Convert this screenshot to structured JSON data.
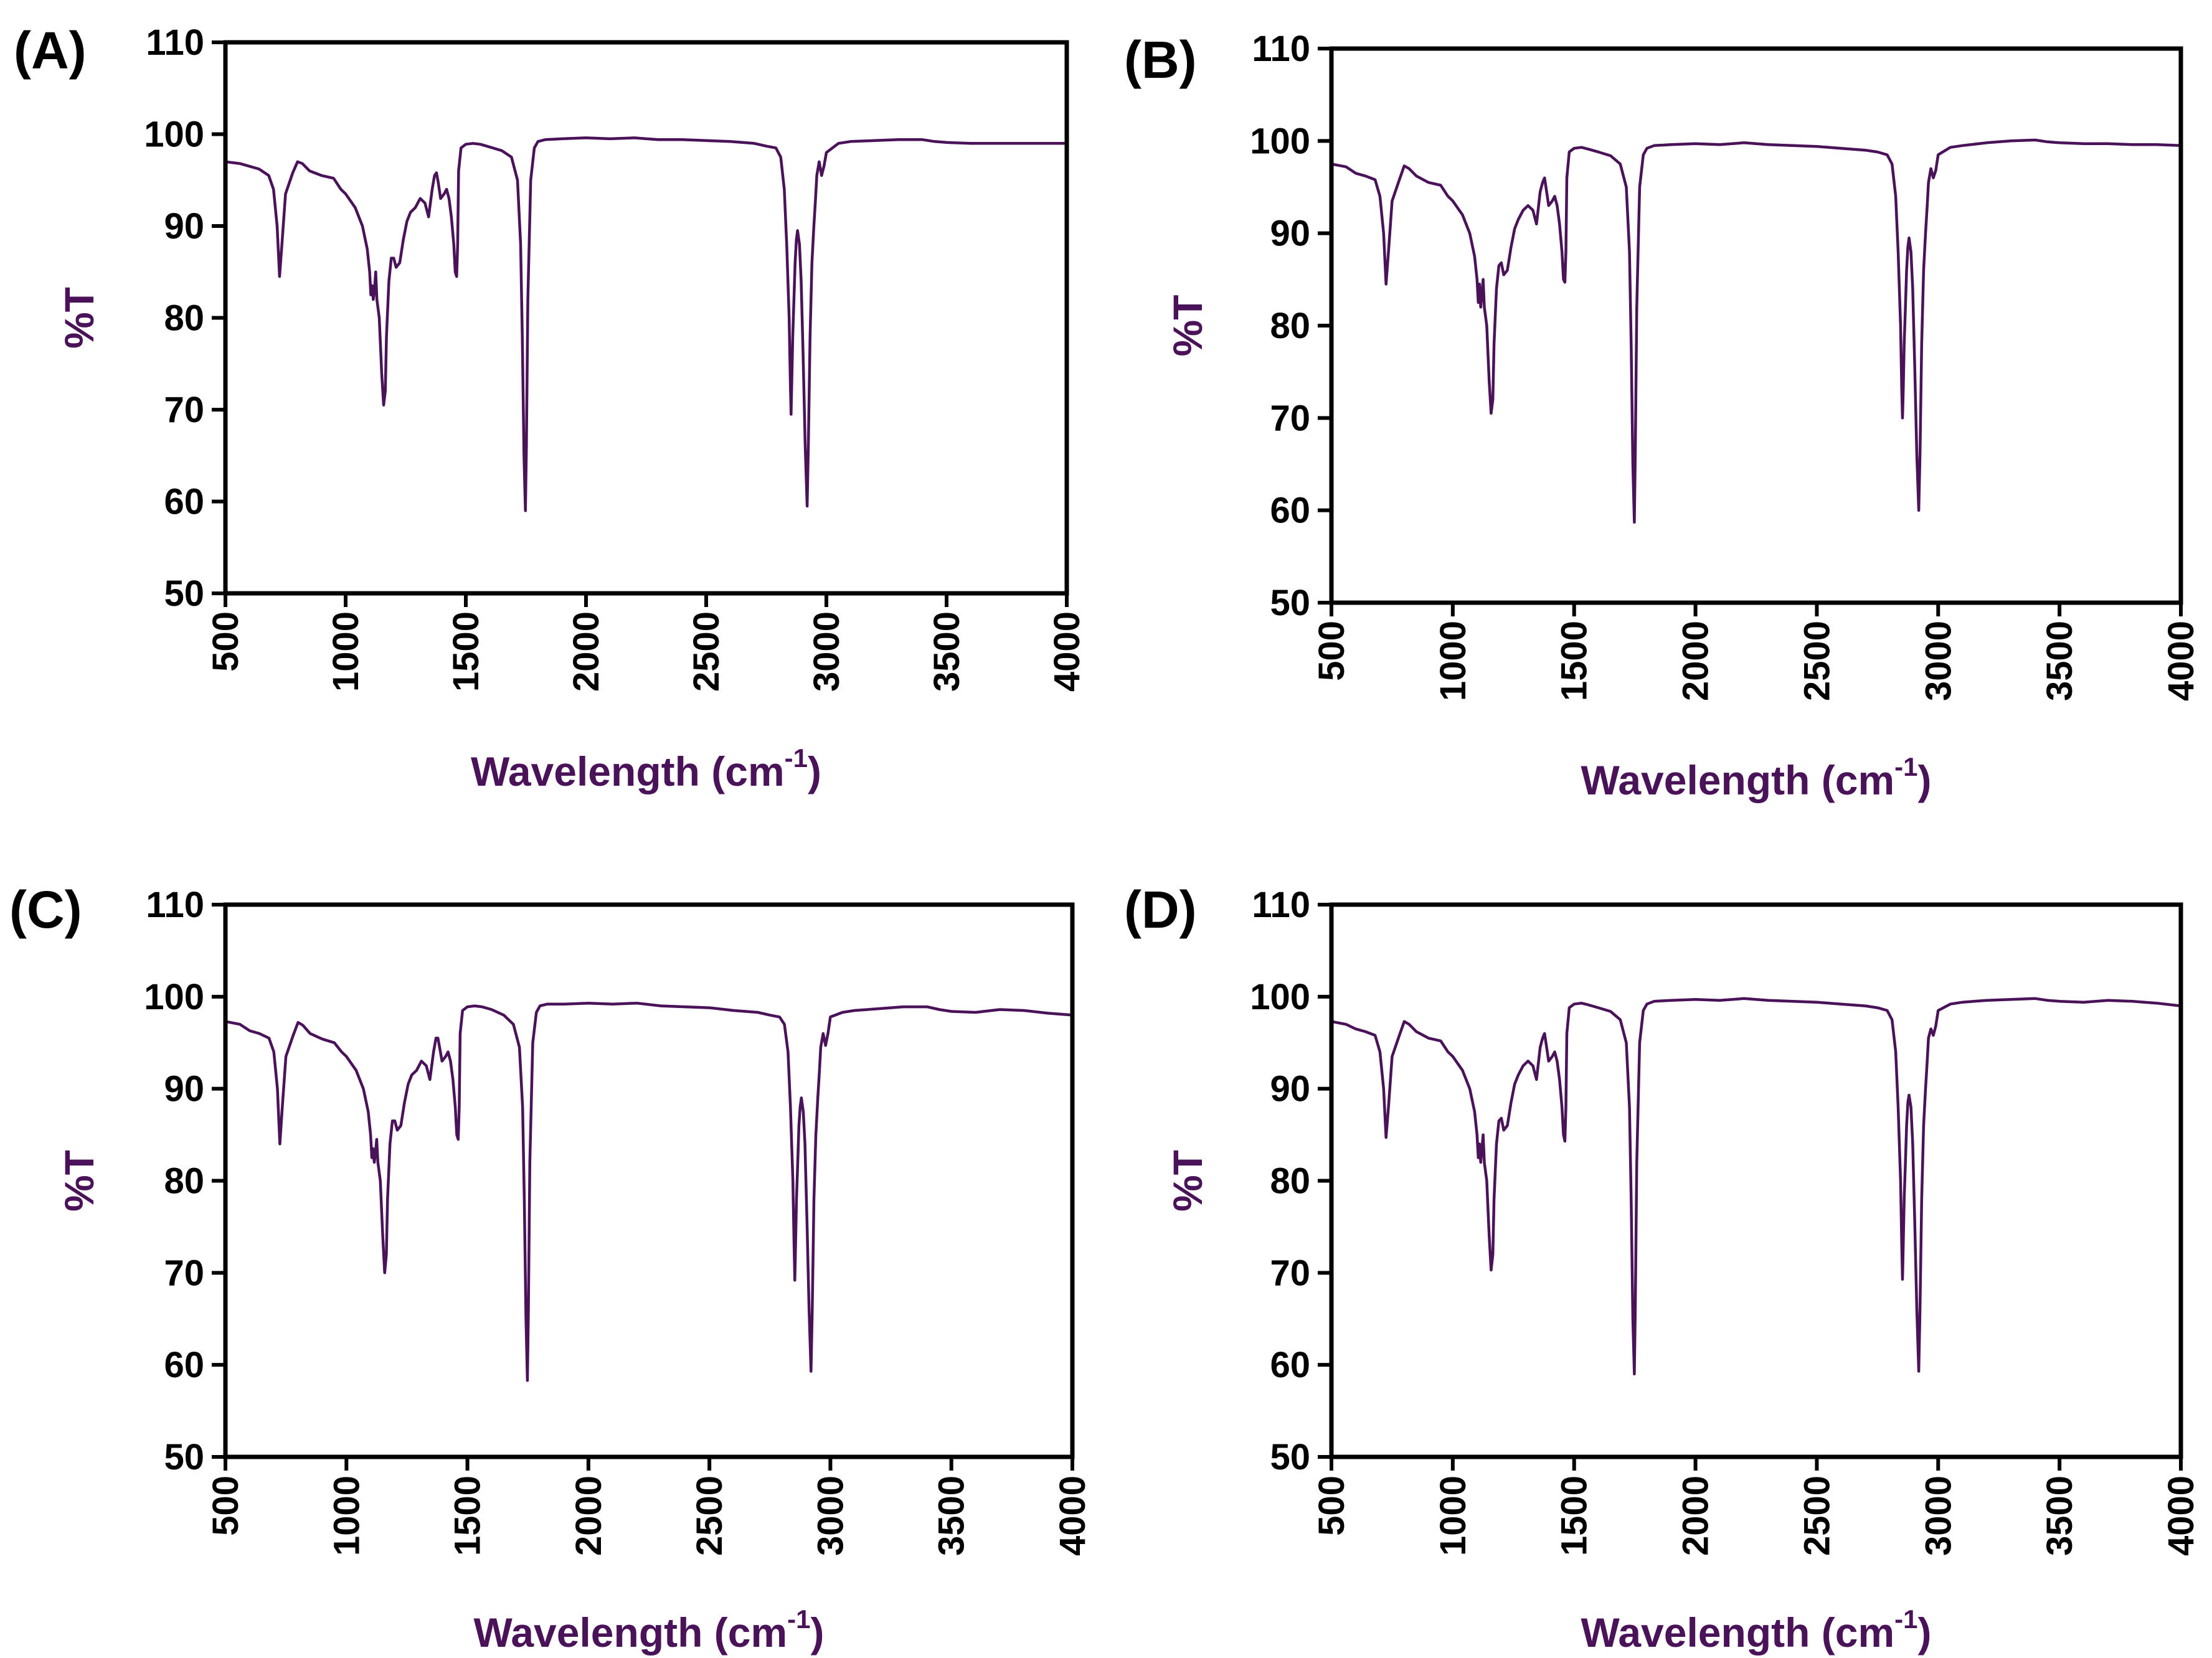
{
  "chart_data": [
    {
      "type": "line",
      "panel_label": "(A)",
      "xlabel": "Wavelength (cm",
      "xlabel_superscript": "-1",
      "xlabel_close": ")",
      "ylabel": "%T",
      "xlim": [
        500,
        4000
      ],
      "ylim": [
        50,
        110
      ],
      "xticks": [
        "500",
        "1000",
        "1500",
        "2000",
        "2500",
        "3000",
        "3500",
        "4000"
      ],
      "yticks": [
        "50",
        "60",
        "70",
        "80",
        "90",
        "100",
        "110"
      ],
      "color": "#4a1259",
      "tail_end": 99.0,
      "x": [
        500,
        560,
        600,
        640,
        680,
        700,
        715,
        725,
        735,
        750,
        780,
        800,
        820,
        850,
        900,
        950,
        980,
        1000,
        1040,
        1070,
        1090,
        1100,
        1105,
        1110,
        1115,
        1120,
        1125,
        1130,
        1140,
        1150,
        1158,
        1165,
        1170,
        1180,
        1190,
        1200,
        1210,
        1225,
        1240,
        1255,
        1270,
        1290,
        1310,
        1330,
        1345,
        1360,
        1370,
        1378,
        1385,
        1395,
        1410,
        1420,
        1430,
        1440,
        1450,
        1456,
        1462,
        1466,
        1470,
        1480,
        1500,
        1530,
        1560,
        1600,
        1650,
        1690,
        1715,
        1728,
        1735,
        1742,
        1748,
        1752,
        1758,
        1770,
        1785,
        1800,
        1830,
        1900,
        2000,
        2100,
        2200,
        2300,
        2400,
        2500,
        2600,
        2700,
        2750,
        2790,
        2810,
        2825,
        2835,
        2845,
        2850,
        2853,
        2856,
        2860,
        2865,
        2870,
        2875,
        2880,
        2888,
        2895,
        2903,
        2912,
        2920,
        2925,
        2932,
        2940,
        2948,
        2955,
        2960,
        2970,
        2980,
        2990,
        3000,
        3050,
        3100,
        3200,
        3300,
        3400,
        3450,
        3500,
        3600,
        3700,
        3800,
        3900,
        4000
      ],
      "values": [
        97,
        96.8,
        96.5,
        96.2,
        95.5,
        94.0,
        90.0,
        84.5,
        88,
        93.5,
        95.8,
        97.0,
        96.8,
        96.0,
        95.5,
        95.2,
        94.0,
        93.5,
        92.0,
        90.0,
        87.5,
        85.0,
        82.5,
        83.5,
        82.0,
        83.0,
        85.0,
        82.0,
        80.0,
        74.0,
        70.5,
        72.0,
        78.0,
        84.0,
        86.5,
        86.5,
        85.5,
        86.0,
        88.5,
        90.5,
        91.5,
        92.0,
        93.0,
        92.5,
        91.0,
        94.0,
        95.5,
        95.8,
        94.8,
        93.0,
        93.5,
        94.0,
        93.0,
        91.0,
        88.0,
        85.0,
        84.5,
        88.0,
        96.0,
        98.5,
        98.9,
        99.0,
        98.9,
        98.6,
        98.2,
        97.5,
        95.0,
        88.0,
        78.0,
        65.0,
        59.0,
        66.0,
        82.0,
        95.0,
        98.5,
        99.2,
        99.4,
        99.5,
        99.6,
        99.5,
        99.6,
        99.4,
        99.4,
        99.3,
        99.2,
        99.0,
        98.7,
        98.5,
        97.5,
        94.0,
        88.0,
        80.0,
        73.0,
        69.5,
        73.0,
        78.0,
        82.0,
        86.0,
        88.5,
        89.5,
        88.0,
        84.0,
        76.0,
        66.0,
        59.5,
        66.0,
        78.0,
        86.0,
        90.0,
        93.0,
        95.5,
        97.0,
        95.5,
        96.5,
        98.0,
        99.0,
        99.2,
        99.3,
        99.4,
        99.4,
        99.2,
        99.1,
        99.0,
        99.0,
        99.0,
        99.0,
        99.0
      ]
    },
    {
      "type": "line",
      "panel_label": "(B)",
      "xlabel": "Wavelength (cm",
      "xlabel_superscript": "-1",
      "xlabel_close": ")",
      "ylabel": "%T",
      "xlim": [
        500,
        4000
      ],
      "ylim": [
        50,
        110
      ],
      "xticks": [
        "500",
        "1000",
        "1500",
        "2000",
        "2500",
        "3000",
        "3500",
        "4000"
      ],
      "yticks": [
        "50",
        "60",
        "70",
        "80",
        "90",
        "100",
        "110"
      ],
      "color": "#4a1259",
      "tail_end": 99.5,
      "x": [
        500,
        560,
        600,
        640,
        680,
        700,
        715,
        725,
        735,
        750,
        780,
        800,
        820,
        850,
        900,
        950,
        980,
        1000,
        1040,
        1070,
        1090,
        1100,
        1105,
        1110,
        1115,
        1120,
        1125,
        1130,
        1140,
        1150,
        1158,
        1165,
        1170,
        1180,
        1190,
        1200,
        1210,
        1225,
        1240,
        1255,
        1270,
        1290,
        1310,
        1330,
        1345,
        1360,
        1370,
        1378,
        1385,
        1395,
        1410,
        1420,
        1430,
        1440,
        1450,
        1456,
        1462,
        1466,
        1470,
        1480,
        1500,
        1530,
        1560,
        1600,
        1650,
        1690,
        1715,
        1728,
        1735,
        1742,
        1748,
        1752,
        1758,
        1770,
        1785,
        1800,
        1830,
        1900,
        2000,
        2100,
        2200,
        2300,
        2400,
        2500,
        2600,
        2700,
        2750,
        2790,
        2810,
        2825,
        2835,
        2845,
        2850,
        2853,
        2856,
        2860,
        2865,
        2870,
        2875,
        2880,
        2888,
        2895,
        2903,
        2912,
        2920,
        2925,
        2932,
        2940,
        2948,
        2955,
        2960,
        2970,
        2980,
        2990,
        3000,
        3050,
        3100,
        3200,
        3300,
        3400,
        3450,
        3500,
        3600,
        3700,
        3800,
        3900,
        4000
      ],
      "values": [
        97.5,
        97.2,
        96.5,
        96.2,
        95.8,
        94.0,
        90.0,
        84.5,
        88,
        93.5,
        95.8,
        97.3,
        97.0,
        96.2,
        95.5,
        95.2,
        94.0,
        93.5,
        92.0,
        90.0,
        87.5,
        85.0,
        82.5,
        84.5,
        82.0,
        83.5,
        85.0,
        82.0,
        80.0,
        74.0,
        70.5,
        72.0,
        78.0,
        84.0,
        86.5,
        86.8,
        85.5,
        86.0,
        88.5,
        90.5,
        91.5,
        92.5,
        93.0,
        92.5,
        91.0,
        94.5,
        95.5,
        96.0,
        94.8,
        93.0,
        93.5,
        94.0,
        93.0,
        91.0,
        88.0,
        85.0,
        84.7,
        88.0,
        96.0,
        98.8,
        99.2,
        99.3,
        99.1,
        98.8,
        98.4,
        97.5,
        95.0,
        88.0,
        78.0,
        65.0,
        58.7,
        66.0,
        82.0,
        95.0,
        98.5,
        99.2,
        99.5,
        99.6,
        99.7,
        99.6,
        99.8,
        99.6,
        99.5,
        99.4,
        99.2,
        99.0,
        98.8,
        98.5,
        97.5,
        94.0,
        88.0,
        80.0,
        73.0,
        70.0,
        73.0,
        78.0,
        82.0,
        86.0,
        88.5,
        89.5,
        88.0,
        84.0,
        76.0,
        66.0,
        60.0,
        66.0,
        78.0,
        86.0,
        90.0,
        93.0,
        95.5,
        97.0,
        96.0,
        96.8,
        98.5,
        99.3,
        99.5,
        99.8,
        100.0,
        100.1,
        99.9,
        99.8,
        99.7,
        99.7,
        99.6,
        99.6,
        99.5
      ]
    },
    {
      "type": "line",
      "panel_label": "(C)",
      "xlabel": "Wavelength (cm",
      "xlabel_superscript": "-1",
      "xlabel_close": ")",
      "ylabel": "%T",
      "xlim": [
        500,
        4000
      ],
      "ylim": [
        50,
        110
      ],
      "xticks": [
        "500",
        "1000",
        "1500",
        "2000",
        "2500",
        "3000",
        "3500",
        "4000"
      ],
      "yticks": [
        "50",
        "60",
        "70",
        "80",
        "90",
        "100",
        "110"
      ],
      "color": "#4a1259",
      "tail_end": 98.0,
      "x": [
        500,
        560,
        600,
        640,
        680,
        700,
        715,
        725,
        735,
        750,
        780,
        800,
        820,
        850,
        900,
        950,
        980,
        1000,
        1040,
        1070,
        1090,
        1100,
        1105,
        1110,
        1115,
        1120,
        1125,
        1130,
        1140,
        1150,
        1158,
        1165,
        1170,
        1180,
        1190,
        1200,
        1210,
        1225,
        1240,
        1255,
        1270,
        1290,
        1310,
        1330,
        1345,
        1360,
        1370,
        1378,
        1385,
        1395,
        1410,
        1420,
        1430,
        1440,
        1450,
        1456,
        1462,
        1466,
        1470,
        1480,
        1500,
        1530,
        1560,
        1600,
        1650,
        1690,
        1715,
        1728,
        1735,
        1742,
        1748,
        1752,
        1758,
        1770,
        1785,
        1800,
        1830,
        1900,
        2000,
        2100,
        2200,
        2300,
        2400,
        2500,
        2600,
        2700,
        2750,
        2790,
        2810,
        2825,
        2835,
        2845,
        2850,
        2853,
        2856,
        2860,
        2865,
        2870,
        2875,
        2880,
        2888,
        2895,
        2903,
        2912,
        2920,
        2925,
        2932,
        2940,
        2948,
        2955,
        2960,
        2970,
        2980,
        2990,
        3000,
        3050,
        3100,
        3200,
        3300,
        3400,
        3450,
        3500,
        3600,
        3700,
        3800,
        3900,
        4000
      ],
      "values": [
        97.3,
        97.0,
        96.3,
        96.0,
        95.5,
        94.0,
        90.0,
        84.0,
        88,
        93.5,
        95.8,
        97.2,
        96.9,
        96.0,
        95.4,
        95.0,
        94.0,
        93.5,
        92.0,
        90.0,
        87.5,
        85.0,
        82.5,
        83.5,
        82.0,
        83.0,
        84.5,
        82.0,
        80.0,
        74.0,
        70.0,
        72.0,
        78.0,
        84.0,
        86.5,
        86.5,
        85.5,
        86.0,
        88.5,
        90.5,
        91.5,
        92.0,
        93.0,
        92.5,
        91.0,
        94.0,
        95.5,
        95.5,
        94.5,
        93.0,
        93.5,
        94.0,
        93.0,
        91.0,
        88.0,
        85.0,
        84.5,
        88.0,
        96.0,
        98.5,
        98.9,
        99.0,
        98.9,
        98.6,
        98.0,
        97.0,
        94.5,
        88.0,
        78.0,
        65.0,
        58.3,
        66.0,
        82.0,
        95.0,
        98.3,
        99.0,
        99.2,
        99.2,
        99.3,
        99.2,
        99.3,
        99.0,
        98.9,
        98.8,
        98.5,
        98.3,
        98.0,
        97.8,
        97.0,
        94.0,
        88.0,
        80.0,
        73.0,
        69.2,
        73.0,
        78.0,
        82.0,
        86.0,
        88.0,
        89.0,
        87.5,
        84.0,
        76.0,
        66.0,
        59.3,
        66.0,
        78.0,
        85.0,
        89.0,
        92.0,
        94.5,
        96.0,
        94.7,
        96.0,
        97.8,
        98.3,
        98.5,
        98.7,
        98.9,
        98.9,
        98.6,
        98.4,
        98.3,
        98.6,
        98.5,
        98.2,
        98.0
      ]
    },
    {
      "type": "line",
      "panel_label": "(D)",
      "xlabel": "Wavelength (cm",
      "xlabel_superscript": "-1",
      "xlabel_close": ")",
      "ylabel": "%T",
      "xlim": [
        500,
        4000
      ],
      "ylim": [
        50,
        110
      ],
      "xticks": [
        "500",
        "1000",
        "1500",
        "2000",
        "2500",
        "3000",
        "3500",
        "4000"
      ],
      "yticks": [
        "50",
        "60",
        "70",
        "80",
        "90",
        "100",
        "110"
      ],
      "color": "#4a1259",
      "tail_end": 99.0,
      "x": [
        500,
        560,
        600,
        640,
        680,
        700,
        715,
        725,
        735,
        750,
        780,
        800,
        820,
        850,
        900,
        950,
        980,
        1000,
        1040,
        1070,
        1090,
        1100,
        1105,
        1110,
        1115,
        1120,
        1125,
        1130,
        1140,
        1150,
        1158,
        1165,
        1170,
        1180,
        1190,
        1200,
        1210,
        1225,
        1240,
        1255,
        1270,
        1290,
        1310,
        1330,
        1345,
        1360,
        1370,
        1378,
        1385,
        1395,
        1410,
        1420,
        1430,
        1440,
        1450,
        1456,
        1462,
        1466,
        1470,
        1480,
        1500,
        1530,
        1560,
        1600,
        1650,
        1690,
        1715,
        1728,
        1735,
        1742,
        1748,
        1752,
        1758,
        1770,
        1785,
        1800,
        1830,
        1900,
        2000,
        2100,
        2200,
        2300,
        2400,
        2500,
        2600,
        2700,
        2750,
        2790,
        2810,
        2825,
        2835,
        2845,
        2850,
        2853,
        2856,
        2860,
        2865,
        2870,
        2875,
        2880,
        2888,
        2895,
        2903,
        2912,
        2920,
        2925,
        2932,
        2940,
        2948,
        2955,
        2960,
        2970,
        2980,
        2990,
        3000,
        3050,
        3100,
        3200,
        3300,
        3400,
        3450,
        3500,
        3600,
        3700,
        3800,
        3900,
        4000
      ],
      "values": [
        97.3,
        97.0,
        96.5,
        96.2,
        95.8,
        94.0,
        90.0,
        84.7,
        88,
        93.5,
        95.8,
        97.3,
        97.0,
        96.2,
        95.5,
        95.2,
        94.0,
        93.5,
        92.0,
        90.0,
        87.5,
        85.0,
        82.5,
        84.0,
        82.0,
        83.5,
        85.0,
        82.0,
        80.0,
        74.0,
        70.3,
        72.0,
        78.0,
        84.0,
        86.5,
        86.8,
        85.5,
        86.0,
        88.5,
        90.5,
        91.5,
        92.5,
        93.0,
        92.5,
        91.0,
        94.5,
        95.5,
        96.0,
        94.8,
        93.0,
        93.5,
        94.0,
        93.0,
        91.0,
        88.0,
        85.0,
        84.3,
        88.0,
        96.0,
        98.8,
        99.2,
        99.3,
        99.1,
        98.8,
        98.4,
        97.5,
        95.0,
        88.0,
        78.0,
        65.0,
        59.0,
        66.0,
        82.0,
        95.0,
        98.5,
        99.2,
        99.5,
        99.6,
        99.7,
        99.6,
        99.8,
        99.6,
        99.5,
        99.4,
        99.2,
        99.0,
        98.8,
        98.5,
        97.5,
        94.0,
        88.0,
        80.0,
        73.0,
        69.3,
        73.0,
        78.0,
        82.0,
        86.0,
        88.5,
        89.3,
        88.0,
        84.0,
        76.0,
        66.0,
        59.3,
        66.0,
        78.0,
        86.0,
        90.0,
        93.0,
        95.5,
        96.5,
        95.8,
        96.8,
        98.5,
        99.2,
        99.4,
        99.6,
        99.7,
        99.8,
        99.6,
        99.5,
        99.4,
        99.6,
        99.5,
        99.3,
        99.0
      ]
    }
  ]
}
